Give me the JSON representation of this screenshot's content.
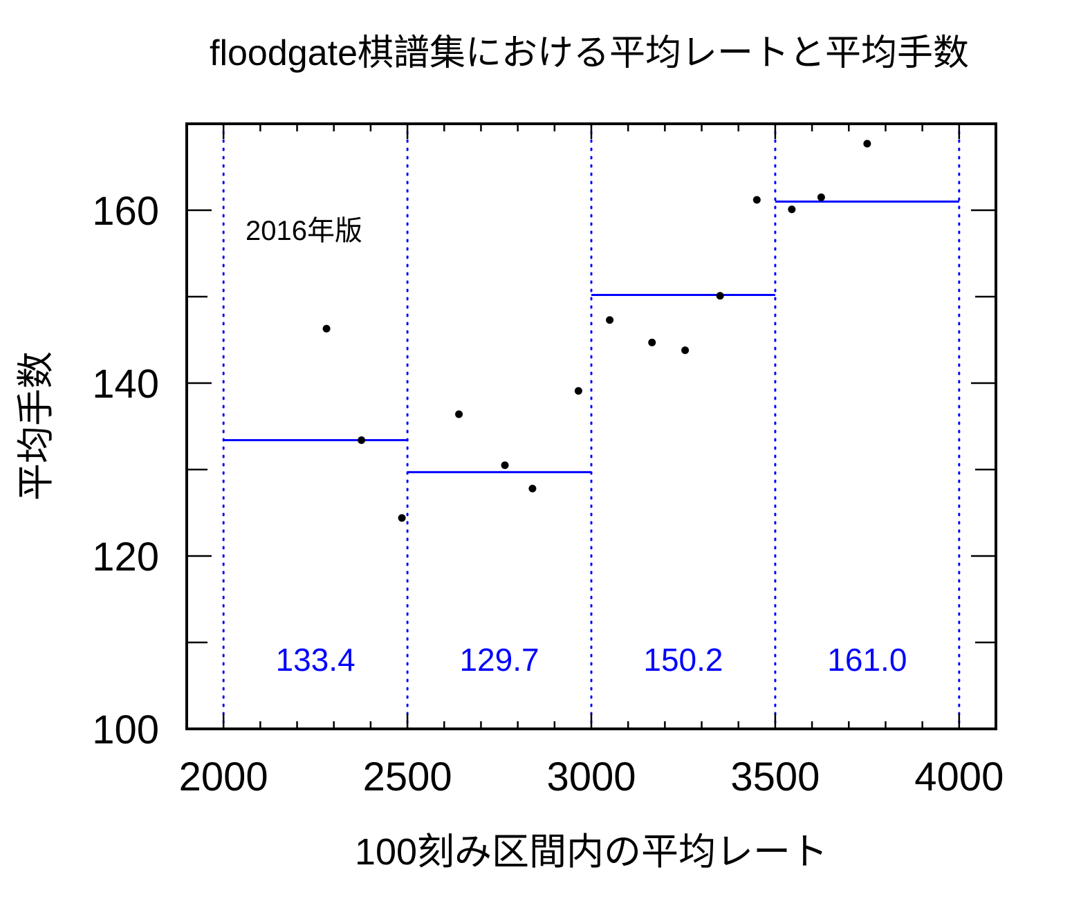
{
  "chart_data": {
    "type": "scatter",
    "title": "floodgate棋譜集における平均レートと平均手数",
    "xlabel": "100刻み区間内の平均レート",
    "ylabel": "平均手数",
    "annotation": "2016年版",
    "xlim": [
      1900,
      4100
    ],
    "ylim": [
      100,
      170
    ],
    "xticks": [
      2000,
      2500,
      3000,
      3500,
      4000
    ],
    "yticks": [
      100,
      120,
      140,
      160
    ],
    "x_minor_step": 100,
    "y_minor_step": 10,
    "grid": false,
    "series": [
      {
        "name": "平均手数",
        "points": [
          {
            "x": 2280,
            "y": 146.3
          },
          {
            "x": 2375,
            "y": 133.4
          },
          {
            "x": 2485,
            "y": 124.4
          },
          {
            "x": 2640,
            "y": 136.4
          },
          {
            "x": 2765,
            "y": 130.5
          },
          {
            "x": 2840,
            "y": 127.8
          },
          {
            "x": 2965,
            "y": 139.1
          },
          {
            "x": 3050,
            "y": 147.3
          },
          {
            "x": 3165,
            "y": 144.7
          },
          {
            "x": 3255,
            "y": 143.8
          },
          {
            "x": 3350,
            "y": 150.1
          },
          {
            "x": 3450,
            "y": 161.2
          },
          {
            "x": 3545,
            "y": 160.1
          },
          {
            "x": 3625,
            "y": 161.5
          },
          {
            "x": 3750,
            "y": 167.7
          }
        ]
      }
    ],
    "bins": [
      {
        "x_start": 2000,
        "x_end": 2500,
        "mean": 133.4,
        "label": "133.4"
      },
      {
        "x_start": 2500,
        "x_end": 3000,
        "mean": 129.7,
        "label": "129.7"
      },
      {
        "x_start": 3000,
        "x_end": 3500,
        "mean": 150.2,
        "label": "150.2"
      },
      {
        "x_start": 3500,
        "x_end": 4000,
        "mean": 161.0,
        "label": "161.0"
      }
    ],
    "bin_label_y": 108,
    "bin_boundaries": [
      2000,
      2500,
      3000,
      3500,
      4000
    ],
    "colors": {
      "points": "#000000",
      "mean_line": "#0000ff",
      "boundary": "#0000ff",
      "bin_label": "#0000ff"
    }
  }
}
